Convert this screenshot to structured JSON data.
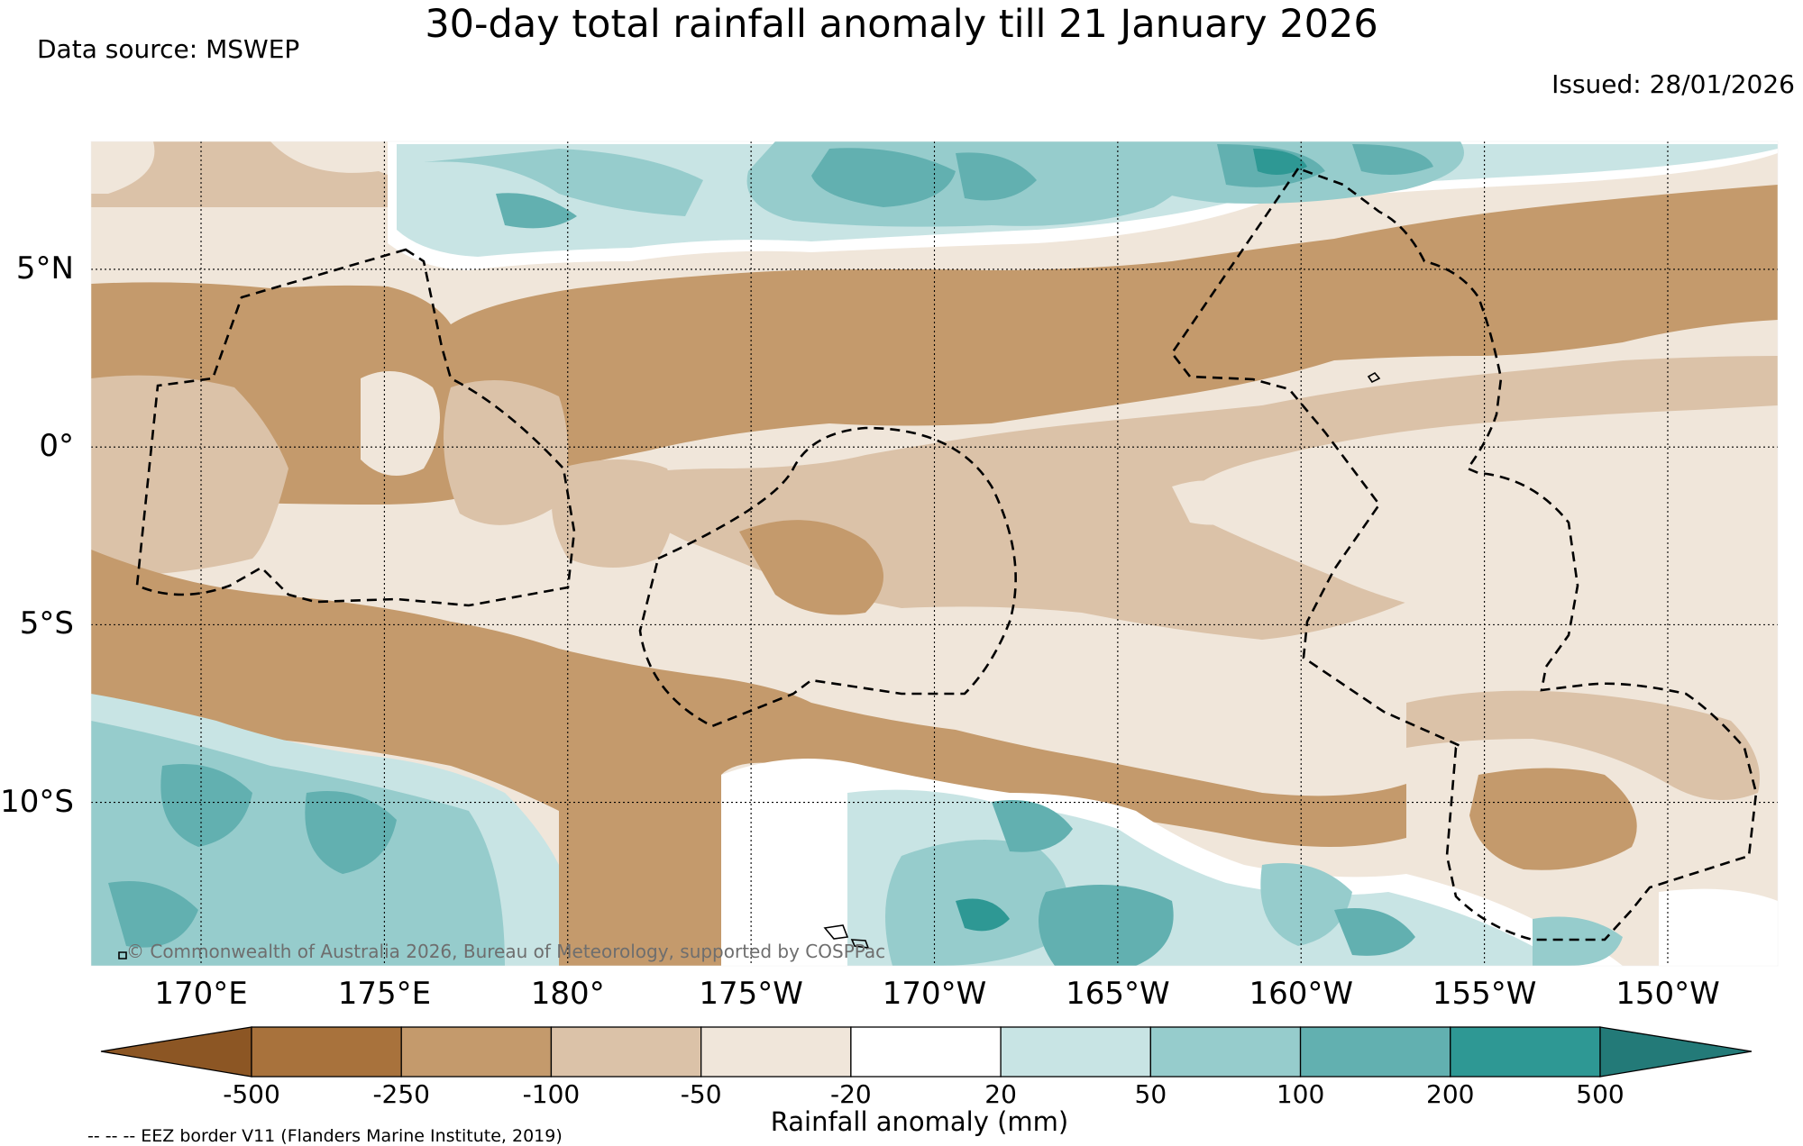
{
  "title": "30-day total rainfall anomaly till 21 January 2026",
  "data_source": "Data source: MSWEP",
  "issued": "Issued: 28/01/2026",
  "copyright": "© Commonwealth of Australia 2026, Bureau of Meteorology, supported by COSPPac",
  "eez_note": "-- -- -- EEZ border V11 (Flanders Marine Institute, 2019)",
  "map": {
    "lon_range": [
      167,
      147
    ],
    "lat_range": [
      8.6,
      -14.6
    ],
    "lat_ticks": [
      {
        "value": 5,
        "label": "5°N"
      },
      {
        "value": 0,
        "label": "0°"
      },
      {
        "value": -5,
        "label": "5°S"
      },
      {
        "value": -10,
        "label": "10°S"
      }
    ],
    "lon_ticks": [
      {
        "value": 170,
        "label": "170°E"
      },
      {
        "value": 175,
        "label": "175°E"
      },
      {
        "value": 180,
        "label": "180°"
      },
      {
        "value": 185,
        "label": "175°W"
      },
      {
        "value": 190,
        "label": "170°W"
      },
      {
        "value": 195,
        "label": "165°W"
      },
      {
        "value": 200,
        "label": "160°W"
      },
      {
        "value": 205,
        "label": "155°W"
      },
      {
        "value": 210,
        "label": "150°W"
      }
    ],
    "grid_style": "dotted"
  },
  "colorbar": {
    "label": "Rainfall anomaly (mm)",
    "colors": [
      "#8c5624",
      "#a8723c",
      "#c49a6c",
      "#dbc2a8",
      "#f0e6da",
      "#ffffff",
      "#c8e4e4",
      "#96cccc",
      "#62b0b0",
      "#2e9894",
      "#237a78"
    ],
    "ticks": [
      "-500",
      "-250",
      "-100",
      "-50",
      "-20",
      "20",
      "50",
      "100",
      "200",
      "500"
    ]
  },
  "colors": {
    "dry_strong": "#c49a6c",
    "dry_moderate": "#dbc2a8",
    "dry_weak": "#f0e6da",
    "neutral": "#ffffff",
    "wet_weak": "#c8e4e4",
    "wet_moderate": "#96cccc",
    "wet_strong": "#62b0b0",
    "wet_very_strong": "#2e9894"
  }
}
